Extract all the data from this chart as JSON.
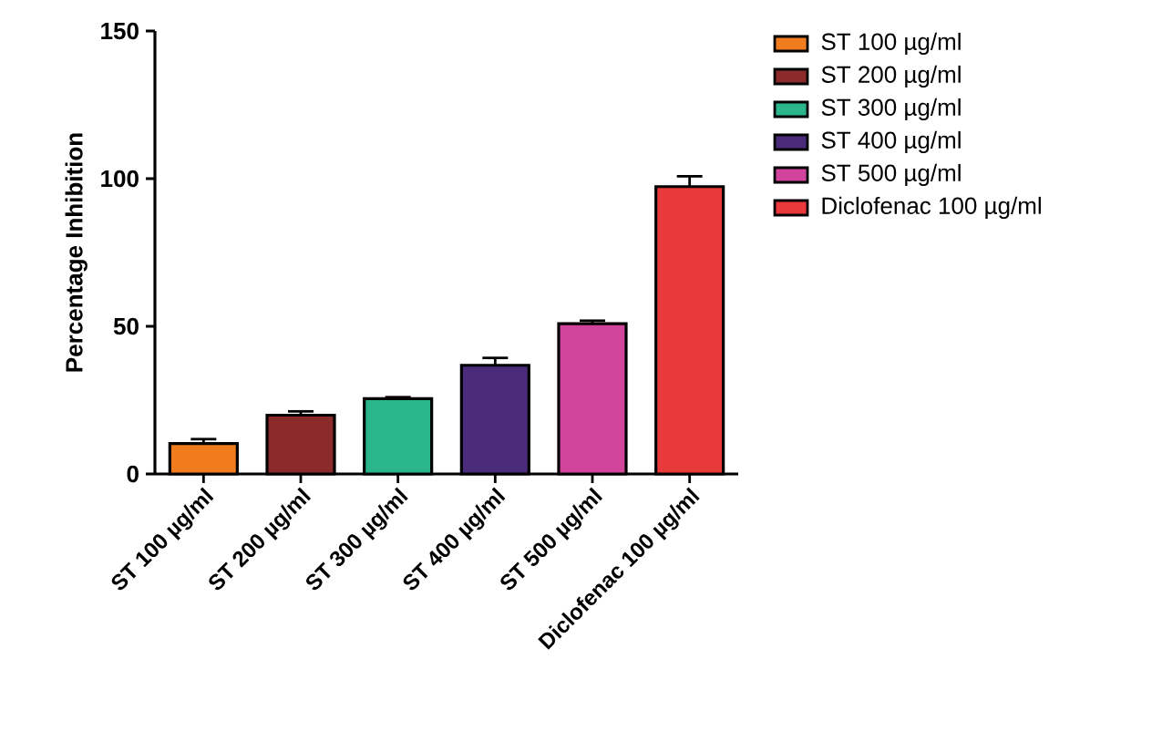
{
  "chart_data": {
    "type": "bar",
    "ylabel": "Percentage Inhibition",
    "categories": [
      "ST 100 µg/ml",
      "ST 200 µg/ml",
      "ST 300 µg/ml",
      "ST 400 µg/ml",
      "ST 500 µg/ml",
      "Diclofenac 100 µg/ml"
    ],
    "series": [
      {
        "name": "ST 100 µg/ml",
        "color": "#f07c1e",
        "values": [
          10.3,
          null,
          null,
          null,
          null,
          null
        ],
        "errors": [
          1.5,
          null,
          null,
          null,
          null,
          null
        ]
      },
      {
        "name": "ST 200 µg/ml",
        "color": "#8b2a2a",
        "values": [
          null,
          19.9,
          null,
          null,
          null,
          null
        ],
        "errors": [
          null,
          1.3,
          null,
          null,
          null,
          null
        ]
      },
      {
        "name": "ST 300 µg/ml",
        "color": "#2ab58a",
        "values": [
          null,
          null,
          25.5,
          null,
          null,
          null
        ],
        "errors": [
          null,
          null,
          0.5,
          null,
          null,
          null
        ]
      },
      {
        "name": "ST 400 µg/ml",
        "color": "#4b2c7a",
        "values": [
          null,
          null,
          null,
          36.8,
          null,
          null
        ],
        "errors": [
          null,
          null,
          null,
          2.5,
          null,
          null
        ]
      },
      {
        "name": "ST 500 µg/ml",
        "color": "#d0449a",
        "values": [
          null,
          null,
          null,
          null,
          50.9,
          null
        ],
        "errors": [
          null,
          null,
          null,
          null,
          1.0,
          null
        ]
      },
      {
        "name": "Diclofenac 100 µg/ml",
        "color": "#e83a3a",
        "values": [
          null,
          null,
          null,
          null,
          null,
          97.3
        ],
        "errors": [
          null,
          null,
          null,
          null,
          null,
          3.5
        ]
      }
    ],
    "ylim": [
      0,
      150
    ],
    "yticks": [
      0,
      50,
      100,
      150
    ],
    "legend": "right"
  }
}
